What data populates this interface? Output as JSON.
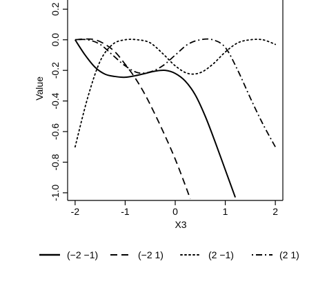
{
  "chart_data": {
    "type": "line",
    "title": "",
    "xlabel": "X3",
    "ylabel": "Value",
    "xlim": [
      -2.15,
      2.15
    ],
    "ylim": [
      -1.05,
      0.35
    ],
    "xticks": [
      -2,
      -1,
      0,
      1,
      2
    ],
    "xtick_labels": [
      "-2",
      "-1",
      "0",
      "1",
      "2"
    ],
    "yticks": [
      0.2,
      0.0,
      -0.2,
      -0.4,
      -0.6,
      -0.8,
      -1.0
    ],
    "ytick_labels": [
      "0.2",
      "0.0",
      "-0.2",
      "-0.4",
      "-0.6",
      "-0.8",
      "-1.0"
    ],
    "grid": false,
    "legend_placement": "bottom",
    "series": [
      {
        "name": "(−2 −1)",
        "line_style": "solid",
        "color": "#000000",
        "x": [
          -2.0,
          -1.8,
          -1.6,
          -1.4,
          -1.2,
          -1.0,
          -0.8,
          -0.6,
          -0.4,
          -0.2,
          0.0,
          0.2,
          0.4,
          0.6,
          0.8,
          1.0,
          1.2
        ],
        "y": [
          0.0,
          -0.1,
          -0.18,
          -0.225,
          -0.24,
          -0.245,
          -0.235,
          -0.22,
          -0.205,
          -0.2,
          -0.22,
          -0.27,
          -0.36,
          -0.5,
          -0.67,
          -0.85,
          -1.03
        ]
      },
      {
        "name": "(−2 1)",
        "line_style": "dashed",
        "color": "#000000",
        "x": [
          -2.0,
          -1.8,
          -1.6,
          -1.4,
          -1.2,
          -1.0,
          -0.8,
          -0.6,
          -0.4,
          -0.2,
          0.0,
          0.2,
          0.3
        ],
        "y": [
          0.0,
          0.005,
          0.0,
          -0.03,
          -0.08,
          -0.16,
          -0.25,
          -0.36,
          -0.49,
          -0.63,
          -0.78,
          -0.95,
          -1.04
        ]
      },
      {
        "name": "(2 −1)",
        "line_style": "dotted",
        "color": "#000000",
        "x": [
          -2.0,
          -1.75,
          -1.5,
          -1.25,
          -1.0,
          -0.75,
          -0.5,
          -0.25,
          0.0,
          0.25,
          0.5,
          0.75,
          1.0,
          1.25,
          1.5,
          1.75,
          2.0
        ],
        "y": [
          -0.7,
          -0.38,
          -0.14,
          -0.03,
          0.0,
          0.0,
          -0.02,
          -0.09,
          -0.17,
          -0.22,
          -0.215,
          -0.16,
          -0.08,
          -0.02,
          0.0,
          0.0,
          -0.03
        ]
      },
      {
        "name": "(2 1)",
        "line_style": "dashdot",
        "color": "#000000",
        "x": [
          -2.0,
          -1.75,
          -1.5,
          -1.25,
          -1.0,
          -0.75,
          -0.5,
          -0.25,
          0.0,
          0.25,
          0.5,
          0.75,
          1.0,
          1.25,
          1.5,
          1.75,
          2.0
        ],
        "y": [
          0.0,
          0.0,
          -0.03,
          -0.1,
          -0.17,
          -0.215,
          -0.21,
          -0.17,
          -0.1,
          -0.03,
          0.0,
          0.0,
          -0.05,
          -0.2,
          -0.38,
          -0.55,
          -0.7
        ]
      }
    ]
  }
}
